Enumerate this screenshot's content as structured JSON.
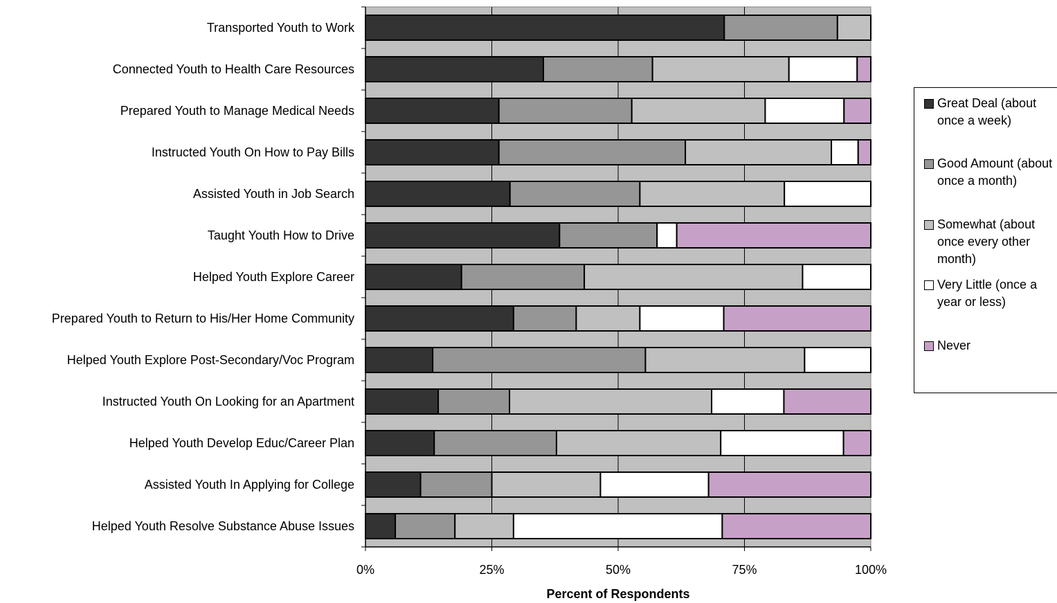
{
  "chart_data": {
    "type": "bar",
    "orientation": "horizontal",
    "stacked": "100%",
    "xlabel": "Percent of Respondents",
    "ylabel": "",
    "xlim": [
      0,
      100
    ],
    "x_ticks": [
      "0%",
      "25%",
      "50%",
      "75%",
      "100%"
    ],
    "grid": true,
    "legend_position": "right",
    "categories": [
      "Transported Youth to Work",
      "Connected Youth to Health Care Resources",
      "Prepared Youth to Manage Medical Needs",
      "Instructed Youth On How to Pay Bills",
      "Assisted Youth in Job Search",
      "Taught Youth How to Drive",
      "Helped Youth Explore Career",
      "Prepared Youth to Return to His/Her Home Community",
      "Helped Youth Explore Post-Secondary/Voc Program",
      "Instructed Youth On Looking for an Apartment",
      "Helped Youth Develop Educ/Career Plan",
      "Assisted Youth In Applying for College",
      "Helped Youth Resolve Substance Abuse Issues"
    ],
    "series": [
      {
        "name": "Great Deal (about once a week)",
        "color": "#333333",
        "values": [
          71.0,
          35.2,
          26.4,
          26.4,
          28.6,
          38.4,
          19.0,
          29.3,
          13.3,
          14.4,
          13.6,
          10.9,
          5.9
        ]
      },
      {
        "name": "Good Amount (about once a month)",
        "color": "#969696",
        "values": [
          22.4,
          21.6,
          26.3,
          36.9,
          25.7,
          19.3,
          24.3,
          12.4,
          42.1,
          14.1,
          24.2,
          14.1,
          11.8
        ]
      },
      {
        "name": "Somewhat (about once every other month)",
        "color": "#c0c0c0",
        "values": [
          6.6,
          27.0,
          26.4,
          28.9,
          28.6,
          0,
          43.2,
          12.6,
          31.5,
          40.0,
          32.5,
          21.5,
          11.6
        ]
      },
      {
        "name": "Very Little (once a year or less)",
        "color": "#ffffff",
        "values": [
          0,
          13.5,
          15.6,
          5.3,
          17.1,
          3.9,
          13.5,
          16.6,
          13.1,
          14.3,
          24.3,
          21.4,
          41.3
        ]
      },
      {
        "name": "Never",
        "color": "#c7a0c8",
        "values": [
          0,
          2.7,
          5.3,
          2.5,
          0,
          38.4,
          0,
          29.1,
          0,
          17.2,
          5.4,
          32.1,
          29.4
        ]
      }
    ]
  },
  "colors": {
    "plot_background": "#c0c0c0",
    "gridlines": "#000000"
  }
}
